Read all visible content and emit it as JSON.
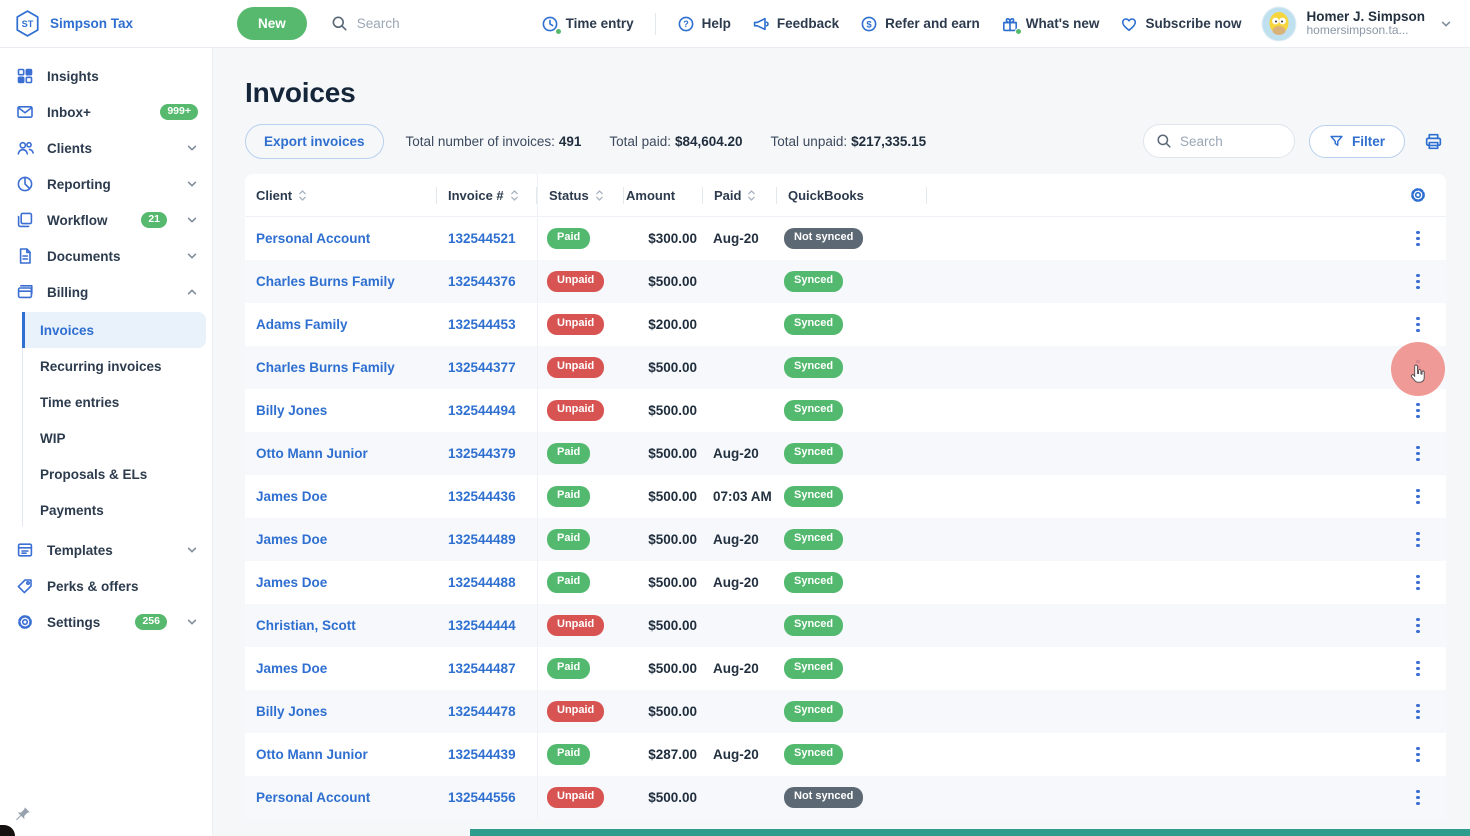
{
  "topbar": {
    "brand": {
      "initials": "ST",
      "name": "Simpson Tax"
    },
    "new_button": "New",
    "search_placeholder": "Search",
    "menu": [
      {
        "label": "Time entry",
        "icon": "clock-icon",
        "dot": true
      },
      {
        "label": "Help",
        "icon": "help-circle-icon",
        "dot": false
      },
      {
        "label": "Feedback",
        "icon": "megaphone-icon",
        "dot": false
      },
      {
        "label": "Refer and earn",
        "icon": "dollar-circle-icon",
        "dot": false
      },
      {
        "label": "What's new",
        "icon": "gift-icon",
        "dot": true
      },
      {
        "label": "Subscribe now",
        "icon": "heart-icon",
        "dot": false
      }
    ],
    "user": {
      "name": "Homer J. Simpson",
      "subtitle": "homersimpson.ta..."
    }
  },
  "sidebar": {
    "items": [
      {
        "label": "Insights",
        "icon": "grid-icon"
      },
      {
        "label": "Inbox+",
        "icon": "mail-icon",
        "badge": "999+"
      },
      {
        "label": "Clients",
        "icon": "clients-icon",
        "chevron": "down"
      },
      {
        "label": "Reporting",
        "icon": "pie-chart-icon",
        "chevron": "down"
      },
      {
        "label": "Workflow",
        "icon": "layers-icon",
        "badge": "21",
        "chevron": "down"
      },
      {
        "label": "Documents",
        "icon": "document-icon",
        "chevron": "down"
      },
      {
        "label": "Billing",
        "icon": "billing-icon",
        "chevron": "up",
        "children": [
          {
            "label": "Invoices",
            "active": true
          },
          {
            "label": "Recurring invoices"
          },
          {
            "label": "Time entries"
          },
          {
            "label": "WIP"
          },
          {
            "label": "Proposals & ELs"
          },
          {
            "label": "Payments"
          }
        ]
      },
      {
        "label": "Templates",
        "icon": "templates-icon",
        "chevron": "down"
      },
      {
        "label": "Perks & offers",
        "icon": "tag-icon"
      },
      {
        "label": "Settings",
        "icon": "gear-icon",
        "badge": "256",
        "chevron": "down"
      }
    ]
  },
  "page": {
    "title": "Invoices",
    "export_button": "Export invoices",
    "stats": [
      {
        "label": "Total number of invoices:",
        "value": "491"
      },
      {
        "label": "Total paid:",
        "value": "$84,604.20"
      },
      {
        "label": "Total unpaid:",
        "value": "$217,335.15"
      }
    ],
    "search_placeholder": "Search",
    "filter_button": "Filter",
    "icons": [
      "printer-icon",
      "filter-funnel-icon",
      "table-settings-gear-icon"
    ]
  },
  "table": {
    "columns": [
      {
        "label": "Client",
        "sortable": true
      },
      {
        "label": "Invoice #",
        "sortable": true
      },
      {
        "label": "Status",
        "sortable": true
      },
      {
        "label": "Amount",
        "sortable": false
      },
      {
        "label": "Paid",
        "sortable": true
      },
      {
        "label": "QuickBooks",
        "sortable": false
      }
    ],
    "rows": [
      {
        "client": "Personal Account",
        "invoice": "132544521",
        "status": "Paid",
        "amount": "$300.00",
        "paid": "Aug-20",
        "quickbooks": "Not synced"
      },
      {
        "client": "Charles Burns Family",
        "invoice": "132544376",
        "status": "Unpaid",
        "amount": "$500.00",
        "paid": "",
        "quickbooks": "Synced"
      },
      {
        "client": "Adams Family",
        "invoice": "132544453",
        "status": "Unpaid",
        "amount": "$200.00",
        "paid": "",
        "quickbooks": "Synced"
      },
      {
        "client": "Charles Burns Family",
        "invoice": "132544377",
        "status": "Unpaid",
        "amount": "$500.00",
        "paid": "",
        "quickbooks": "Synced"
      },
      {
        "client": "Billy Jones",
        "invoice": "132544494",
        "status": "Unpaid",
        "amount": "$500.00",
        "paid": "",
        "quickbooks": "Synced"
      },
      {
        "client": "Otto Mann Junior",
        "invoice": "132544379",
        "status": "Paid",
        "amount": "$500.00",
        "paid": "Aug-20",
        "quickbooks": "Synced"
      },
      {
        "client": "James Doe",
        "invoice": "132544436",
        "status": "Paid",
        "amount": "$500.00",
        "paid": "07:03 AM",
        "quickbooks": "Synced"
      },
      {
        "client": "James Doe",
        "invoice": "132544489",
        "status": "Paid",
        "amount": "$500.00",
        "paid": "Aug-20",
        "quickbooks": "Synced"
      },
      {
        "client": "James Doe",
        "invoice": "132544488",
        "status": "Paid",
        "amount": "$500.00",
        "paid": "Aug-20",
        "quickbooks": "Synced"
      },
      {
        "client": "Christian, Scott",
        "invoice": "132544444",
        "status": "Unpaid",
        "amount": "$500.00",
        "paid": "",
        "quickbooks": "Synced"
      },
      {
        "client": "James Doe",
        "invoice": "132544487",
        "status": "Paid",
        "amount": "$500.00",
        "paid": "Aug-20",
        "quickbooks": "Synced"
      },
      {
        "client": "Billy Jones",
        "invoice": "132544478",
        "status": "Unpaid",
        "amount": "$500.00",
        "paid": "",
        "quickbooks": "Synced"
      },
      {
        "client": "Otto Mann Junior",
        "invoice": "132544439",
        "status": "Paid",
        "amount": "$287.00",
        "paid": "Aug-20",
        "quickbooks": "Synced"
      },
      {
        "client": "Personal Account",
        "invoice": "132544556",
        "status": "Unpaid",
        "amount": "$500.00",
        "paid": "",
        "quickbooks": "Not synced"
      }
    ],
    "click_indicator_row_index": 3
  },
  "colors": {
    "accent_blue": "#2e6fd0",
    "green": "#53b96e",
    "red": "#d75452",
    "gray_badge": "#5c6873",
    "active_item_bg": "#e9f1fb",
    "row_stripe": "#f6f8fb",
    "teal_bottom_bar": "#2f9d8e"
  }
}
